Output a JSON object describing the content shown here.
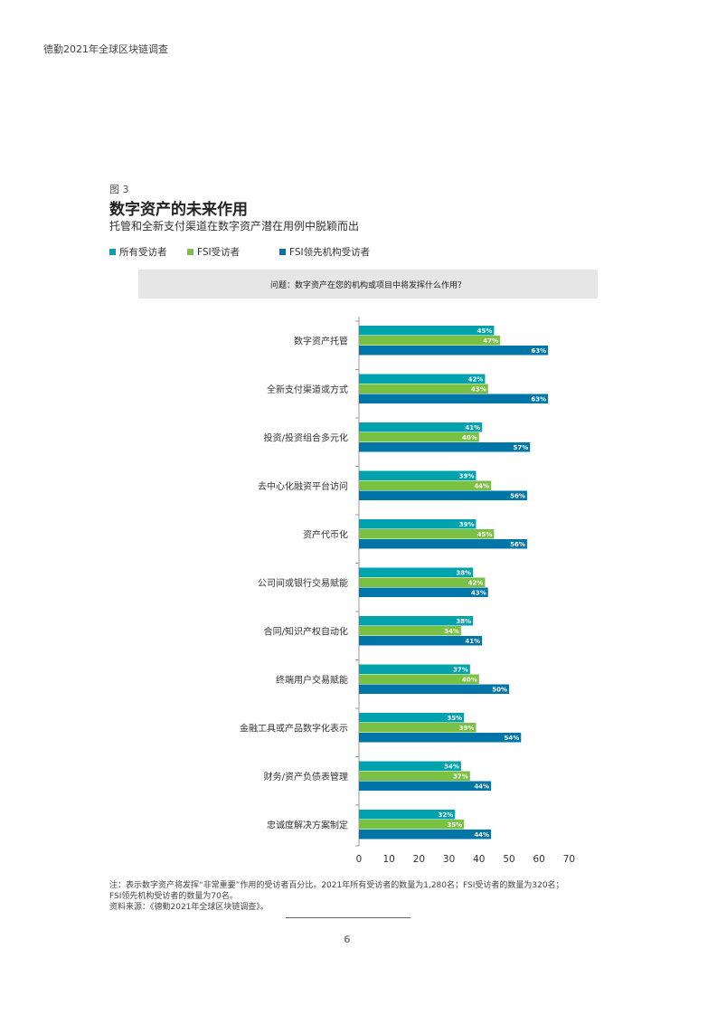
{
  "header": {
    "text": "德勤2021年全球区块链调查"
  },
  "figure": {
    "label": "图 3",
    "title": "数字资产的未来作用",
    "subtitle": "托管和全新支付渠道在数字资产潜在用例中脱颖而出"
  },
  "legend": [
    {
      "label": "所有受访者",
      "color": "#00a3ad"
    },
    {
      "label": "FSI受访者",
      "color": "#7ac143"
    },
    {
      "label": "FSI领先机构受访者",
      "color": "#0076a8"
    }
  ],
  "question": "问题：数字资产在您的机构或项目中将发挥什么作用？",
  "chart_data": {
    "type": "bar",
    "orientation": "horizontal",
    "categories": [
      "数字资产托管",
      "全新支付渠道或方式",
      "投资/投资组合多元化",
      "去中心化融资平台访问",
      "资产代币化",
      "公司间或银行交易赋能",
      "合同/知识产权自动化",
      "终端用户交易赋能",
      "金融工具或产品数字化表示",
      "财务/资产负债表管理",
      "忠诚度解决方案制定"
    ],
    "series": [
      {
        "name": "所有受访者",
        "color": "#00a3ad",
        "values": [
          45,
          42,
          41,
          39,
          39,
          38,
          38,
          37,
          35,
          34,
          32
        ]
      },
      {
        "name": "FSI受访者",
        "color": "#7ac143",
        "values": [
          47,
          43,
          40,
          44,
          45,
          42,
          34,
          40,
          39,
          37,
          35
        ]
      },
      {
        "name": "FSI领先机构受访者",
        "color": "#0076a8",
        "values": [
          63,
          63,
          57,
          56,
          56,
          43,
          41,
          50,
          54,
          44,
          44
        ]
      }
    ],
    "value_suffix": "%",
    "xlim": [
      0,
      70
    ],
    "xticks": [
      0,
      10,
      20,
      30,
      40,
      50,
      60,
      70
    ],
    "grid": false
  },
  "footnote": {
    "line1": "注：表示数字资产将发挥“非常重要”作用的受访者百分比。2021年所有受访者的数量为1,280名；FSI受访者的数量为320名；",
    "line2": "FSI领先机构受访者的数量为70名。",
    "line3": "资料来源：《德勤2021年全球区块链调查》。"
  },
  "page_number": "6"
}
